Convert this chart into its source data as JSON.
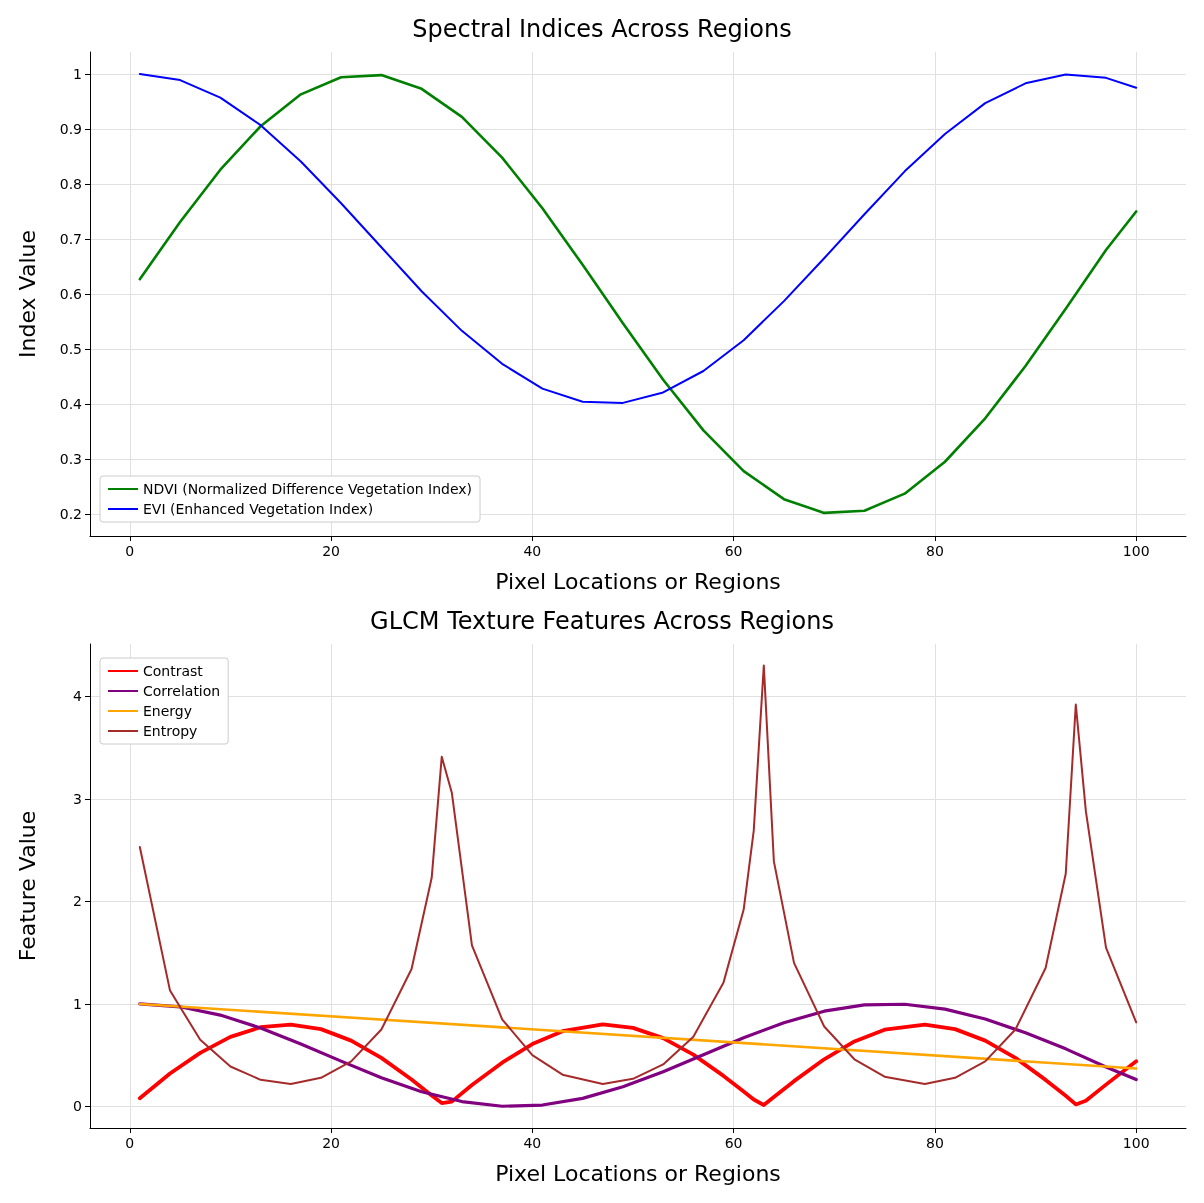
{
  "chart_data": [
    {
      "type": "line",
      "title": "Spectral Indices Across Regions",
      "xlabel": "Pixel Locations or Regions",
      "ylabel": "Index Value",
      "xlim": [
        -3.95,
        104.95
      ],
      "xticks": [
        0,
        20,
        40,
        60,
        80,
        100
      ],
      "ylim": [
        0.16,
        1.04
      ],
      "yticks": [
        0.2,
        0.3,
        0.4,
        0.5,
        0.6,
        0.7,
        0.8,
        0.9,
        1.0
      ],
      "grid": true,
      "legend": "bottom left",
      "line_style": "solid",
      "marker": "none",
      "series": [
        {
          "name": "NDVI (Normalized Difference Vegetation Index)",
          "color": "#008000",
          "x": [
            1,
            5,
            9,
            13,
            17,
            21,
            25,
            29,
            33,
            37,
            41,
            45,
            49,
            53,
            57,
            61,
            65,
            69,
            73,
            77,
            81,
            85,
            89,
            93,
            97,
            100
          ],
          "values": [
            0.627,
            0.731,
            0.826,
            0.905,
            0.963,
            0.994,
            0.998,
            0.973,
            0.922,
            0.848,
            0.756,
            0.653,
            0.547,
            0.444,
            0.352,
            0.278,
            0.227,
            0.202,
            0.206,
            0.237,
            0.295,
            0.374,
            0.469,
            0.573,
            0.68,
            0.75
          ]
        },
        {
          "name": "EVI (Enhanced Vegetation Index)",
          "color": "#0000ff",
          "x": [
            1,
            5,
            9,
            13,
            17,
            21,
            25,
            29,
            33,
            37,
            41,
            45,
            49,
            53,
            57,
            61,
            65,
            69,
            73,
            77,
            81,
            85,
            89,
            93,
            97,
            100
          ],
          "values": [
            1.0,
            0.989,
            0.957,
            0.907,
            0.841,
            0.765,
            0.685,
            0.605,
            0.533,
            0.473,
            0.428,
            0.404,
            0.402,
            0.421,
            0.46,
            0.516,
            0.587,
            0.665,
            0.745,
            0.823,
            0.891,
            0.947,
            0.983,
            0.999,
            0.993,
            0.975
          ]
        }
      ]
    },
    {
      "type": "line",
      "title": "GLCM Texture Features Across Regions",
      "xlabel": "Pixel Locations or Regions",
      "ylabel": "Feature Value",
      "xlim": [
        -3.95,
        104.95
      ],
      "xticks": [
        0,
        20,
        40,
        60,
        80,
        100
      ],
      "ylim": [
        -0.21,
        4.51
      ],
      "yticks": [
        0,
        1,
        2,
        3,
        4
      ],
      "grid": true,
      "legend": "top left",
      "line_style": "solid",
      "marker": "none",
      "series": [
        {
          "name": "Contrast",
          "color": "#ff0000",
          "x": [
            1,
            4,
            7,
            10,
            13,
            16,
            19,
            22,
            25,
            28,
            30,
            31,
            32,
            34,
            37,
            40,
            43,
            47,
            50,
            53,
            56,
            59,
            61,
            62,
            63,
            64,
            66,
            69,
            72,
            75,
            79,
            82,
            85,
            88,
            91,
            93,
            94,
            95,
            97,
            100
          ],
          "values": [
            0.08,
            0.322,
            0.523,
            0.679,
            0.773,
            0.799,
            0.754,
            0.642,
            0.474,
            0.263,
            0.107,
            0.033,
            0.047,
            0.209,
            0.427,
            0.608,
            0.734,
            0.8,
            0.766,
            0.666,
            0.506,
            0.298,
            0.147,
            0.068,
            0.014,
            0.092,
            0.247,
            0.46,
            0.634,
            0.749,
            0.799,
            0.754,
            0.642,
            0.474,
            0.259,
            0.104,
            0.02,
            0.056,
            0.213,
            0.44
          ]
        },
        {
          "name": "Correlation",
          "color": "#800080",
          "x": [
            1,
            5,
            9,
            13,
            17,
            21,
            25,
            29,
            33,
            37,
            41,
            45,
            49,
            53,
            57,
            61,
            65,
            69,
            73,
            77,
            81,
            85,
            89,
            93,
            97,
            100
          ],
          "values": [
            1.0,
            0.972,
            0.891,
            0.765,
            0.61,
            0.442,
            0.281,
            0.144,
            0.048,
            0.002,
            0.014,
            0.079,
            0.192,
            0.339,
            0.505,
            0.67,
            0.817,
            0.929,
            0.99,
            0.997,
            0.949,
            0.853,
            0.719,
            0.562,
            0.385,
            0.262
          ]
        },
        {
          "name": "Energy",
          "color": "#ffa500",
          "x": [
            1,
            100
          ],
          "values": [
            1.0,
            0.37
          ]
        },
        {
          "name": "Entropy",
          "color": "#a52a2a",
          "x": [
            1,
            4,
            7,
            10,
            13,
            16,
            19,
            22,
            25,
            28,
            30,
            31,
            32,
            34,
            37,
            40,
            43,
            47,
            50,
            53,
            56,
            59,
            61,
            62,
            63,
            64,
            66,
            69,
            72,
            75,
            79,
            82,
            85,
            88,
            91,
            93,
            94,
            95,
            97,
            100
          ],
          "values": [
            2.53,
            1.13,
            0.65,
            0.39,
            0.26,
            0.22,
            0.28,
            0.44,
            0.75,
            1.34,
            2.23,
            3.41,
            3.06,
            1.57,
            0.85,
            0.5,
            0.31,
            0.22,
            0.27,
            0.41,
            0.68,
            1.21,
            1.92,
            2.69,
            4.3,
            2.39,
            1.4,
            0.78,
            0.46,
            0.29,
            0.22,
            0.28,
            0.44,
            0.75,
            1.35,
            2.27,
            3.92,
            2.88,
            1.55,
            0.82
          ]
        }
      ]
    }
  ]
}
